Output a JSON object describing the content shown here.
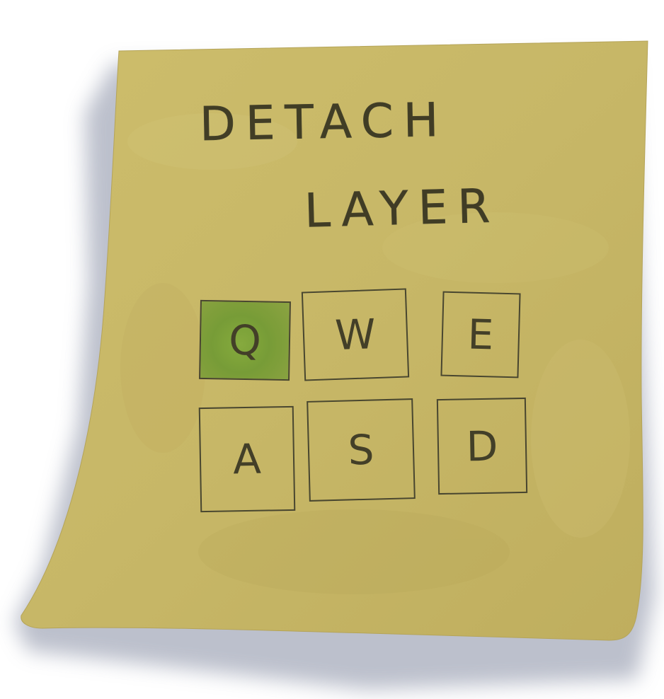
{
  "note": {
    "colors": {
      "paper": "#c7b767",
      "paper_edge": "#b8a85a",
      "shadow": "#9ea3b4",
      "ink": "#2e2c1c",
      "highlight": "#7fa93a"
    },
    "title_line1": "DETACH",
    "title_line2": "LAYER"
  },
  "keys": {
    "row1": [
      {
        "label": "Q",
        "active": true
      },
      {
        "label": "W",
        "active": false
      },
      {
        "label": "E",
        "active": false
      }
    ],
    "row2": [
      {
        "label": "A",
        "active": false
      },
      {
        "label": "S",
        "active": false
      },
      {
        "label": "D",
        "active": false
      }
    ]
  }
}
